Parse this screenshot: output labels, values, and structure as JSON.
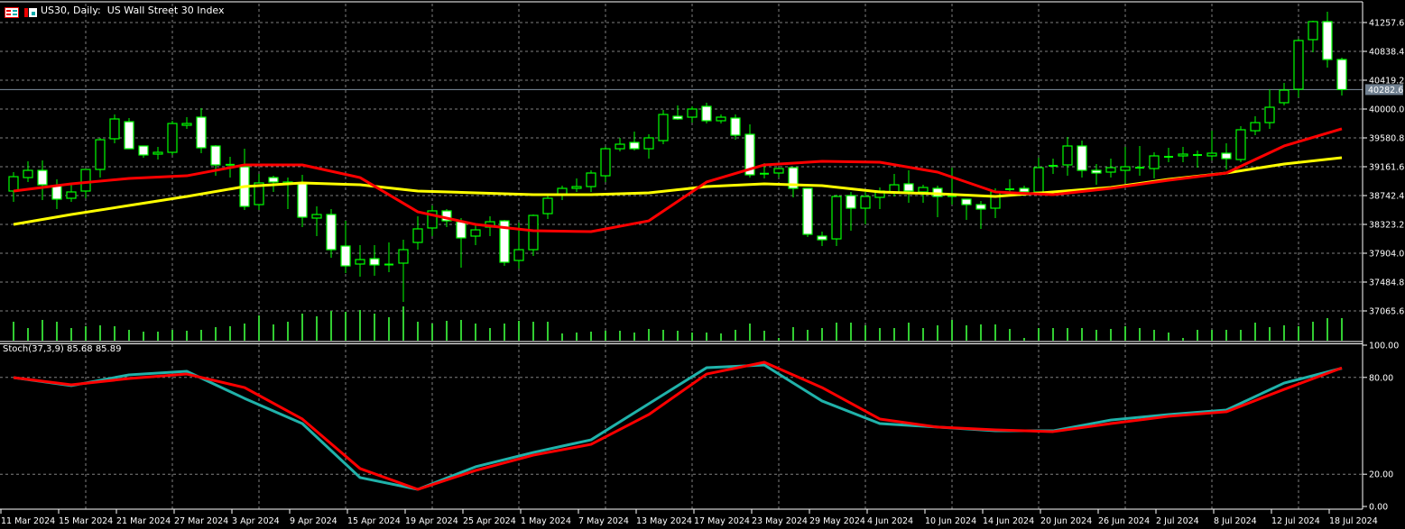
{
  "header": {
    "title": "US30, Daily:  US Wall Street 30 Index",
    "icons": [
      "chart-window-icon",
      "save-template-icon"
    ]
  },
  "colors": {
    "background": "#000000",
    "grid": "#808080",
    "candle_border": "#00ff00",
    "bull_body": "#000000",
    "bear_body": "#ffffff",
    "volume": "#32cd32",
    "ma_fast": "#ff0000",
    "ma_slow": "#ffff00",
    "stoch_main": "#20b2aa",
    "stoch_signal": "#ff0000",
    "price_label_bg": "#708090"
  },
  "chart_data": [
    {
      "type": "candlestick",
      "symbol": "US30",
      "timeframe": "Daily",
      "grid": true,
      "price_ticks": [
        "41257.6",
        "40838.4",
        "40419.2",
        "40000.0",
        "39580.8",
        "39161.6",
        "38742.4",
        "38323.2",
        "37904.0",
        "37484.8",
        "37065.6"
      ],
      "current_price": "40282.6",
      "date_labels": [
        "11 Mar 2024",
        "15 Mar 2024",
        "21 Mar 2024",
        "27 Mar 2024",
        "3 Apr 2024",
        "9 Apr 2024",
        "15 Apr 2024",
        "19 Apr 2024",
        "25 Apr 2024",
        "1 May 2024",
        "7 May 2024",
        "13 May 2024",
        "17 May 2024",
        "23 May 2024",
        "29 May 2024",
        "4 Jun 2024",
        "10 Jun 2024",
        "14 Jun 2024",
        "20 Jun 2024",
        "26 Jun 2024",
        "2 Jul 2024",
        "8 Jul 2024",
        "12 Jul 2024",
        "18 Jul 2024"
      ],
      "ohlc": [
        [
          38808,
          39083,
          38651,
          39017
        ],
        [
          39004,
          39240,
          38939,
          39109
        ],
        [
          39109,
          39253,
          38677,
          38899
        ],
        [
          38886,
          38978,
          38546,
          38690
        ],
        [
          38703,
          38913,
          38651,
          38795
        ],
        [
          38808,
          39122,
          38703,
          39122
        ],
        [
          39122,
          39581,
          39004,
          39554
        ],
        [
          39568,
          39921,
          39502,
          39856
        ],
        [
          39816,
          39869,
          39423,
          39423
        ],
        [
          39463,
          39463,
          39292,
          39332
        ],
        [
          39345,
          39450,
          39266,
          39371
        ],
        [
          39371,
          39830,
          39332,
          39790
        ],
        [
          39764,
          39882,
          39712,
          39790
        ],
        [
          39882,
          40013,
          39358,
          39437
        ],
        [
          39463,
          39476,
          39030,
          39188
        ],
        [
          39190,
          39306,
          39004,
          39188
        ],
        [
          39161,
          39423,
          38533,
          38585
        ],
        [
          38611,
          39057,
          38533,
          38926
        ],
        [
          39004,
          39030,
          38795,
          38939
        ],
        [
          38913,
          39004,
          38546,
          38939
        ],
        [
          38926,
          39044,
          38284,
          38428
        ],
        [
          38415,
          38585,
          38153,
          38467
        ],
        [
          38467,
          38546,
          37838,
          37956
        ],
        [
          38009,
          38375,
          37616,
          37720
        ],
        [
          37747,
          38022,
          37563,
          37812
        ],
        [
          37825,
          38022,
          37576,
          37734
        ],
        [
          37740,
          38061,
          37629,
          37734
        ],
        [
          37760,
          38100,
          37196,
          37956
        ],
        [
          38061,
          38441,
          37956,
          38258
        ],
        [
          38271,
          38598,
          38153,
          38520
        ],
        [
          38520,
          38546,
          38284,
          38375
        ],
        [
          38362,
          38415,
          37694,
          38127
        ],
        [
          38153,
          38323,
          38022,
          38244
        ],
        [
          38284,
          38441,
          38153,
          38362
        ],
        [
          38375,
          38389,
          37720,
          37773
        ],
        [
          37799,
          38349,
          37681,
          37956
        ],
        [
          37956,
          38467,
          37865,
          38454
        ],
        [
          38480,
          38768,
          38402,
          38703
        ],
        [
          38755,
          38886,
          38677,
          38847
        ],
        [
          38847,
          38991,
          38795,
          38873
        ],
        [
          38873,
          39109,
          38795,
          39070
        ],
        [
          39030,
          39450,
          38939,
          39423
        ],
        [
          39423,
          39581,
          39384,
          39489
        ],
        [
          39515,
          39672,
          39397,
          39423
        ],
        [
          39423,
          39633,
          39279,
          39581
        ],
        [
          39541,
          39987,
          39489,
          39921
        ],
        [
          39895,
          40052,
          39843,
          39856
        ],
        [
          39882,
          40039,
          39803,
          40000
        ],
        [
          40039,
          40092,
          39790,
          39830
        ],
        [
          39830,
          39921,
          39790,
          39882
        ],
        [
          39869,
          39921,
          39554,
          39620
        ],
        [
          39633,
          39777,
          39004,
          39044
        ],
        [
          39060,
          39214,
          38991,
          39057
        ],
        [
          39070,
          39135,
          39004,
          39135
        ],
        [
          39148,
          39148,
          38716,
          38847
        ],
        [
          38847,
          38847,
          38140,
          38179
        ],
        [
          38153,
          38218,
          38009,
          38100
        ],
        [
          38113,
          38755,
          38009,
          38729
        ],
        [
          38742,
          38795,
          38231,
          38559
        ],
        [
          38559,
          38795,
          38323,
          38729
        ],
        [
          38716,
          38860,
          38546,
          38808
        ],
        [
          38782,
          39057,
          38729,
          38899
        ],
        [
          38913,
          39109,
          38637,
          38808
        ],
        [
          38795,
          38899,
          38637,
          38860
        ],
        [
          38847,
          38886,
          38428,
          38729
        ],
        [
          38735,
          39148,
          38611,
          38729
        ],
        [
          38690,
          38690,
          38389,
          38611
        ],
        [
          38611,
          38664,
          38258,
          38546
        ],
        [
          38559,
          38847,
          38415,
          38795
        ],
        [
          38830,
          38978,
          38742,
          38834
        ],
        [
          38847,
          38886,
          38768,
          38795
        ],
        [
          38795,
          39292,
          38768,
          39148
        ],
        [
          39170,
          39279,
          39057,
          39175
        ],
        [
          39188,
          39594,
          39030,
          39463
        ],
        [
          39463,
          39541,
          39004,
          39109
        ],
        [
          39109,
          39201,
          38899,
          39070
        ],
        [
          39083,
          39279,
          39004,
          39148
        ],
        [
          39109,
          39450,
          38926,
          39161
        ],
        [
          39140,
          39463,
          39030,
          39148
        ],
        [
          39135,
          39371,
          38991,
          39319
        ],
        [
          39300,
          39437,
          39227,
          39306
        ],
        [
          39319,
          39450,
          39227,
          39345
        ],
        [
          39325,
          39397,
          39148,
          39332
        ],
        [
          39319,
          39685,
          39253,
          39358
        ],
        [
          39358,
          39502,
          39122,
          39279
        ],
        [
          39266,
          39751,
          39227,
          39699
        ],
        [
          39685,
          39895,
          39620,
          39803
        ],
        [
          39803,
          40288,
          39712,
          40026
        ],
        [
          40092,
          40380,
          40052,
          40275
        ],
        [
          40288,
          41022,
          40170,
          40996
        ],
        [
          41009,
          41284,
          40825,
          41271
        ],
        [
          41271,
          41415,
          40603,
          40720
        ],
        [
          40720,
          40746,
          40196,
          40282.6
        ]
      ],
      "volume_relative": [
        21,
        14,
        23,
        21,
        14,
        16,
        17,
        16,
        12,
        10,
        10,
        12,
        11,
        12,
        15,
        16,
        19,
        28,
        18,
        21,
        30,
        27,
        33,
        32,
        34,
        30,
        26,
        38,
        21,
        19,
        22,
        23,
        19,
        14,
        19,
        22,
        21,
        21,
        8,
        9,
        10,
        11,
        11,
        9,
        13,
        12,
        11,
        9,
        9,
        8,
        12,
        19,
        11,
        3,
        15,
        12,
        14,
        20,
        20,
        17,
        14,
        14,
        20,
        14,
        17,
        23,
        17,
        18,
        18,
        13,
        3,
        14,
        14,
        14,
        14,
        12,
        13,
        16,
        14,
        12,
        9,
        3,
        12,
        12,
        12,
        12,
        20,
        15,
        17,
        16,
        21,
        25,
        25
      ],
      "ma_fast_every_4_bars": [
        38808,
        38913,
        38991,
        39030,
        39188,
        39188,
        39004,
        38506,
        38323,
        38231,
        38218,
        38375,
        38939,
        39188,
        39240,
        39227,
        39083,
        38795,
        38755,
        38847,
        38965,
        39070,
        39463,
        39712
      ],
      "ma_slow_every_4_bars": [
        38323,
        38467,
        38598,
        38729,
        38873,
        38926,
        38899,
        38808,
        38782,
        38755,
        38755,
        38782,
        38873,
        38913,
        38886,
        38795,
        38768,
        38729,
        38795,
        38860,
        38978,
        39070,
        39201,
        39292
      ]
    },
    {
      "type": "line",
      "label": "Stoch(37,3,9) 85.68 85.89",
      "ylim": [
        0,
        100
      ],
      "ticks": [
        "100.00",
        "80.00",
        "20.00",
        "0.00"
      ],
      "levels": [
        80,
        20
      ],
      "main_every_4_bars": [
        79.9,
        74.9,
        81.6,
        83.8,
        67.0,
        51.4,
        17.9,
        10.6,
        24.6,
        33.5,
        41.3,
        63.7,
        86.0,
        87.7,
        65.4,
        51.4,
        49.2,
        46.9,
        46.9,
        53.6,
        57.0,
        59.8,
        76.5,
        85.68
      ],
      "signal_every_4_bars": [
        79.9,
        75.4,
        79.3,
        82.1,
        73.7,
        54.2,
        23.5,
        10.6,
        22.3,
        31.8,
        38.5,
        57.0,
        82.1,
        89.4,
        73.7,
        54.2,
        49.2,
        47.5,
        46.4,
        51.4,
        55.9,
        58.7,
        72.6,
        85.89
      ]
    }
  ]
}
